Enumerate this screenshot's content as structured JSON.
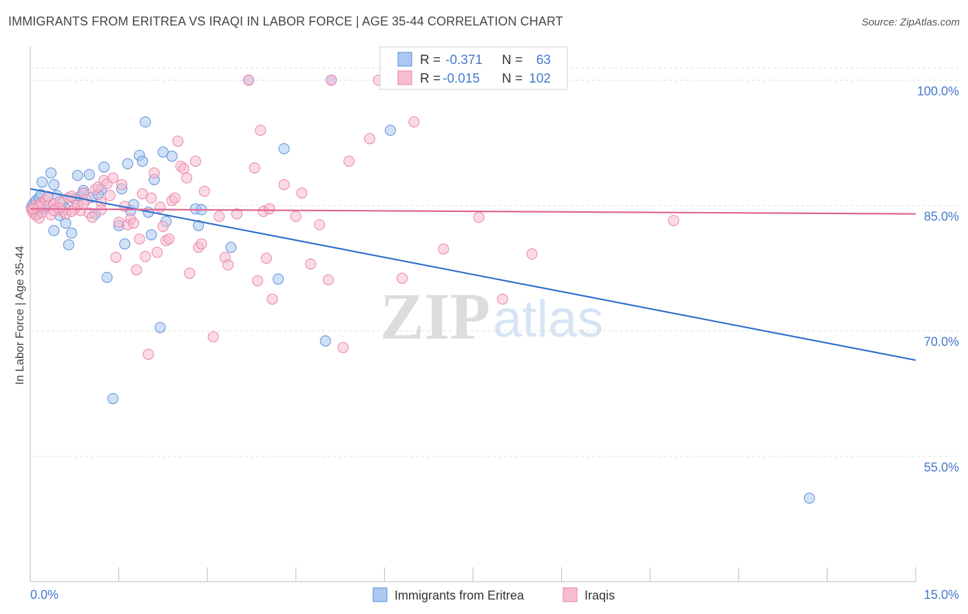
{
  "title": "IMMIGRANTS FROM ERITREA VS IRAQI IN LABOR FORCE | AGE 35-44 CORRELATION CHART",
  "source": "Source: ZipAtlas.com",
  "watermark": {
    "zip": "ZIP",
    "atlas": "atlas"
  },
  "legend": {
    "r_label": "R =",
    "n_label": "N =",
    "series": [
      {
        "r": "-0.371",
        "n": "63"
      },
      {
        "r": "-0.015",
        "n": "102"
      }
    ]
  },
  "colors": {
    "eritrea_fill": "#aac8f0",
    "eritrea_stroke": "#5b8ed6",
    "eritrea_line": "#2f6fcc",
    "iraq_fill": "#f7bcd0",
    "iraq_stroke": "#e882a6",
    "iraq_line": "#e0648f",
    "axis_text": "#4477cc",
    "grid": "#dddddd"
  },
  "chart_data": {
    "type": "scatter",
    "title": "IMMIGRANTS FROM ERITREA VS IRAQI IN LABOR FORCE | AGE 35-44 CORRELATION CHART",
    "xlabel": "",
    "ylabel": "In Labor Force | Age 35-44",
    "xlim": [
      0,
      15
    ],
    "ylim": [
      40,
      103
    ],
    "x_tick_labels": [
      "0.0%",
      "15.0%"
    ],
    "y_ticks": [
      55,
      70,
      85,
      100
    ],
    "y_tick_labels": [
      "55.0%",
      "70.0%",
      "85.0%",
      "100.0%"
    ],
    "grid": "horizontal dashed",
    "legend_position": "top-center",
    "series": [
      {
        "name": "Immigrants from Eritrea",
        "trend": {
          "x": [
            0,
            15
          ],
          "y": [
            87.0,
            66.5
          ]
        },
        "points": [
          [
            0.02,
            84.8
          ],
          [
            0.05,
            85.2
          ],
          [
            0.08,
            84.3
          ],
          [
            0.1,
            85.6
          ],
          [
            0.12,
            84.0
          ],
          [
            0.15,
            85.9
          ],
          [
            0.18,
            86.3
          ],
          [
            0.2,
            87.8
          ],
          [
            0.22,
            85.1
          ],
          [
            0.25,
            84.6
          ],
          [
            0.3,
            86.0
          ],
          [
            0.35,
            88.9
          ],
          [
            0.4,
            87.5
          ],
          [
            0.45,
            86.2
          ],
          [
            0.5,
            83.8
          ],
          [
            0.55,
            85.4
          ],
          [
            0.6,
            82.9
          ],
          [
            0.65,
            80.3
          ],
          [
            0.7,
            81.7
          ],
          [
            0.75,
            85.8
          ],
          [
            0.8,
            88.6
          ],
          [
            0.85,
            86.1
          ],
          [
            0.9,
            86.8
          ],
          [
            1.0,
            88.7
          ],
          [
            1.05,
            86.0
          ],
          [
            1.1,
            84.0
          ],
          [
            1.2,
            86.9
          ],
          [
            1.25,
            89.6
          ],
          [
            1.3,
            76.4
          ],
          [
            1.4,
            61.9
          ],
          [
            1.5,
            82.6
          ],
          [
            1.55,
            87.0
          ],
          [
            1.6,
            80.4
          ],
          [
            1.65,
            90.0
          ],
          [
            1.7,
            84.4
          ],
          [
            1.75,
            85.1
          ],
          [
            1.85,
            91.0
          ],
          [
            1.9,
            90.3
          ],
          [
            1.95,
            95.0
          ],
          [
            2.0,
            84.2
          ],
          [
            2.05,
            81.5
          ],
          [
            2.1,
            88.1
          ],
          [
            2.2,
            70.4
          ],
          [
            2.25,
            91.4
          ],
          [
            2.3,
            83.1
          ],
          [
            2.4,
            90.9
          ],
          [
            2.8,
            84.6
          ],
          [
            2.85,
            82.6
          ],
          [
            2.9,
            84.5
          ],
          [
            3.4,
            80.0
          ],
          [
            3.7,
            100.0
          ],
          [
            4.2,
            76.2
          ],
          [
            4.3,
            91.8
          ],
          [
            5.0,
            68.8
          ],
          [
            5.1,
            100.0
          ],
          [
            6.1,
            94.0
          ],
          [
            13.2,
            50.0
          ],
          [
            0.4,
            82.0
          ],
          [
            0.9,
            86.5
          ],
          [
            1.15,
            86.3
          ],
          [
            0.3,
            84.9
          ],
          [
            0.6,
            84.6
          ],
          [
            0.15,
            84.5
          ]
        ]
      },
      {
        "name": "Iraqis",
        "trend": {
          "x": [
            0,
            15
          ],
          "y": [
            84.6,
            84.0
          ]
        },
        "points": [
          [
            0.02,
            84.5
          ],
          [
            0.05,
            84.1
          ],
          [
            0.08,
            85.0
          ],
          [
            0.1,
            83.8
          ],
          [
            0.12,
            84.7
          ],
          [
            0.15,
            83.5
          ],
          [
            0.18,
            85.3
          ],
          [
            0.2,
            84.2
          ],
          [
            0.25,
            85.6
          ],
          [
            0.3,
            84.9
          ],
          [
            0.35,
            83.9
          ],
          [
            0.4,
            85.2
          ],
          [
            0.45,
            84.8
          ],
          [
            0.5,
            85.5
          ],
          [
            0.55,
            84.3
          ],
          [
            0.6,
            84.0
          ],
          [
            0.65,
            85.9
          ],
          [
            0.7,
            86.1
          ],
          [
            0.75,
            84.6
          ],
          [
            0.8,
            85.0
          ],
          [
            0.85,
            84.4
          ],
          [
            0.9,
            86.5
          ],
          [
            0.95,
            85.7
          ],
          [
            1.0,
            84.1
          ],
          [
            1.05,
            83.6
          ],
          [
            1.1,
            86.9
          ],
          [
            1.15,
            87.2
          ],
          [
            1.2,
            85.4
          ],
          [
            1.25,
            88.0
          ],
          [
            1.3,
            87.6
          ],
          [
            1.35,
            86.2
          ],
          [
            1.4,
            88.3
          ],
          [
            1.45,
            78.8
          ],
          [
            1.5,
            83.0
          ],
          [
            1.55,
            87.5
          ],
          [
            1.6,
            84.9
          ],
          [
            1.65,
            82.7
          ],
          [
            1.7,
            83.4
          ],
          [
            1.75,
            82.9
          ],
          [
            1.8,
            77.3
          ],
          [
            1.85,
            81.0
          ],
          [
            1.9,
            86.4
          ],
          [
            1.95,
            78.9
          ],
          [
            2.0,
            67.2
          ],
          [
            2.05,
            85.9
          ],
          [
            2.1,
            88.9
          ],
          [
            2.15,
            79.4
          ],
          [
            2.2,
            84.8
          ],
          [
            2.25,
            82.5
          ],
          [
            2.3,
            80.8
          ],
          [
            2.35,
            81.0
          ],
          [
            2.4,
            85.6
          ],
          [
            2.45,
            85.9
          ],
          [
            2.5,
            92.7
          ],
          [
            2.55,
            89.7
          ],
          [
            2.6,
            89.4
          ],
          [
            2.65,
            88.3
          ],
          [
            2.7,
            76.9
          ],
          [
            2.8,
            90.3
          ],
          [
            2.85,
            80.0
          ],
          [
            2.9,
            80.4
          ],
          [
            2.95,
            86.7
          ],
          [
            3.1,
            69.3
          ],
          [
            3.2,
            83.7
          ],
          [
            3.3,
            78.8
          ],
          [
            3.35,
            77.9
          ],
          [
            3.5,
            84.0
          ],
          [
            3.7,
            100.0
          ],
          [
            3.8,
            89.5
          ],
          [
            3.85,
            76.0
          ],
          [
            3.9,
            94.0
          ],
          [
            3.95,
            84.3
          ],
          [
            4.0,
            78.7
          ],
          [
            4.05,
            84.6
          ],
          [
            4.1,
            73.8
          ],
          [
            4.3,
            87.5
          ],
          [
            4.5,
            83.7
          ],
          [
            4.6,
            86.5
          ],
          [
            4.75,
            78.0
          ],
          [
            4.9,
            82.7
          ],
          [
            5.05,
            76.1
          ],
          [
            5.1,
            100.0
          ],
          [
            5.3,
            68.0
          ],
          [
            5.4,
            90.3
          ],
          [
            5.75,
            93.0
          ],
          [
            5.9,
            100.0
          ],
          [
            6.3,
            76.3
          ],
          [
            6.5,
            95.0
          ],
          [
            7.0,
            79.8
          ],
          [
            7.6,
            83.6
          ],
          [
            8.0,
            73.8
          ],
          [
            8.2,
            100.0
          ],
          [
            8.5,
            79.2
          ],
          [
            10.9,
            83.2
          ],
          [
            0.3,
            86.1
          ],
          [
            0.5,
            84.7
          ],
          [
            0.9,
            85.2
          ],
          [
            1.2,
            84.5
          ],
          [
            0.15,
            84.9
          ],
          [
            0.4,
            84.4
          ],
          [
            0.7,
            84.3
          ],
          [
            0.05,
            84.6
          ]
        ]
      }
    ]
  },
  "bottom_legend": [
    "Immigrants from Eritrea",
    "Iraqis"
  ]
}
